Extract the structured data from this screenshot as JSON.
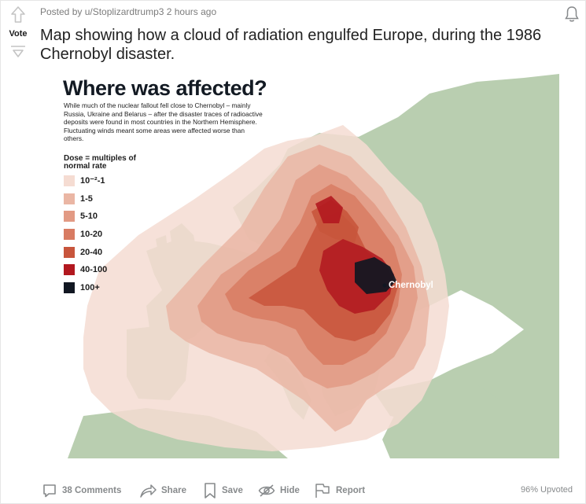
{
  "post": {
    "meta": "Posted by u/Stoplizardtrump3 2 hours ago",
    "vote_label": "Vote",
    "title": "Map showing how a cloud of radiation engulfed Europe, during the 1986 Chernobyl disaster."
  },
  "map": {
    "title": "Where was affected?",
    "description": "While much of the nuclear fallout fell close to Chernobyl – mainly Russia, Ukraine and Belarus – after the disaster traces of radioactive deposits were found in most countries in the Northern Hemisphere. Fluctuating winds meant some areas were affected worse than others.",
    "legend_title": "Dose = multiples of normal rate",
    "legend": [
      {
        "label": "10⁻²-1",
        "color": "#f5dcd2"
      },
      {
        "label": "1-5",
        "color": "#eab6a4"
      },
      {
        "label": "5-10",
        "color": "#e29a84"
      },
      {
        "label": "10-20",
        "color": "#d87b62"
      },
      {
        "label": "20-40",
        "color": "#c8553c"
      },
      {
        "label": "40-100",
        "color": "#b2181f"
      },
      {
        "label": "100+",
        "color": "#111722"
      }
    ],
    "city_label": "Chernobyl",
    "land_color": "#b9ceb0",
    "sea_color": "#ffffff"
  },
  "footer": {
    "comments": "38 Comments",
    "share": "Share",
    "save": "Save",
    "hide": "Hide",
    "report": "Report",
    "upvoted": "96% Upvoted"
  }
}
